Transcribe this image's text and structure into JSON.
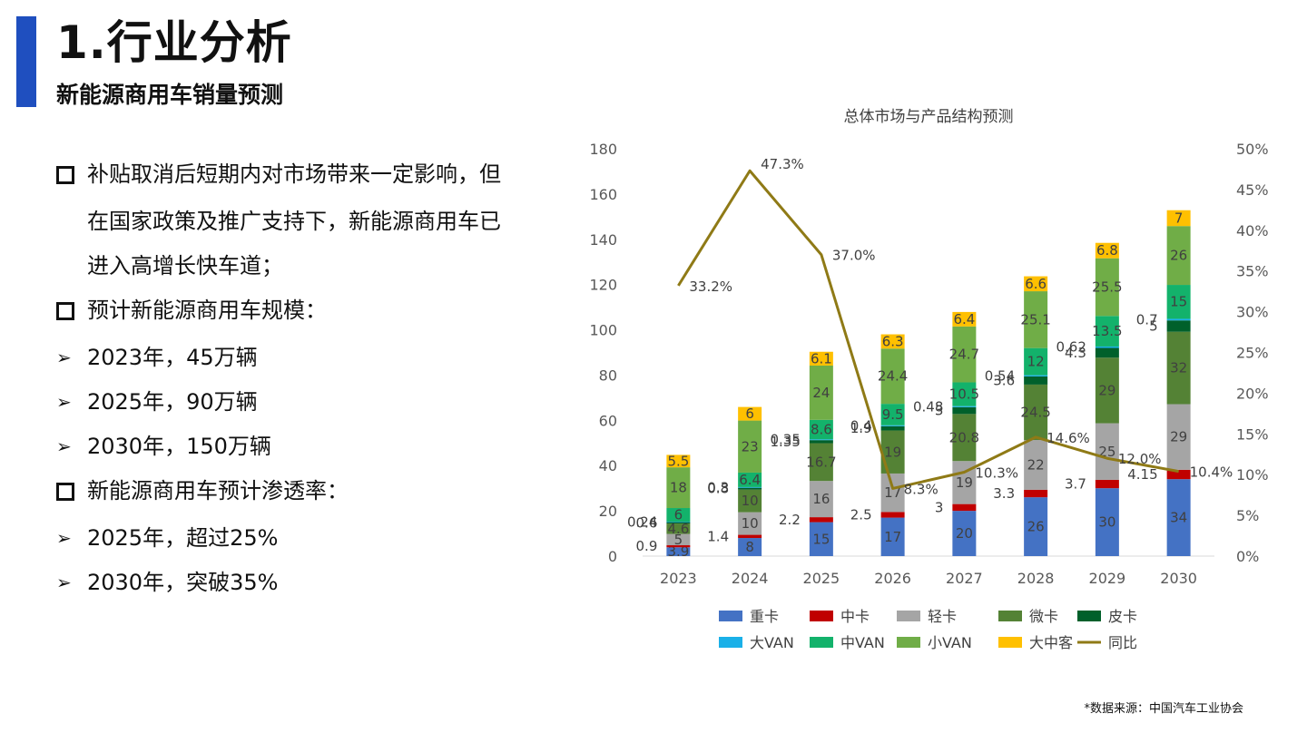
{
  "header": {
    "title": "1.行业分析",
    "subtitle": "新能源商用车销量预测"
  },
  "bullets": [
    {
      "marker": "square",
      "text": "补贴取消后短期内对市场带来一定影响，但"
    },
    {
      "marker": "none",
      "text": "在国家政策及推广支持下，新能源商用车已"
    },
    {
      "marker": "none",
      "text": "进入高增长快车道；"
    },
    {
      "marker": "square",
      "text": "预计新能源商用车规模："
    },
    {
      "marker": "arrow",
      "text": "2023年，45万辆"
    },
    {
      "marker": "arrow",
      "text": "2025年，90万辆"
    },
    {
      "marker": "arrow",
      "text": "2030年，150万辆"
    },
    {
      "marker": "square",
      "text": "新能源商用车预计渗透率："
    },
    {
      "marker": "arrow",
      "text": "2025年，超过25%"
    },
    {
      "marker": "arrow",
      "text": "2030年，突破35%"
    }
  ],
  "footnote": "*数据来源：中国汽车工业协会",
  "chart_data": {
    "type": "bar",
    "stacked": true,
    "title": "总体市场与产品结构预测",
    "categories": [
      "2023",
      "2024",
      "2025",
      "2026",
      "2027",
      "2028",
      "2029",
      "2030"
    ],
    "ylim": [
      0,
      180
    ],
    "yticks": [
      0,
      20,
      40,
      60,
      80,
      100,
      120,
      140,
      160,
      180
    ],
    "y2lim": [
      0,
      0.5
    ],
    "y2ticks": [
      "0%",
      "5%",
      "10%",
      "15%",
      "20%",
      "25%",
      "30%",
      "35%",
      "40%",
      "45%",
      "50%"
    ],
    "legend_position": "bottom",
    "series": [
      {
        "name": "重卡",
        "color": "#4472c4",
        "values": [
          3.9,
          8,
          15,
          17,
          20,
          26,
          30,
          34
        ],
        "labels": [
          "3.9",
          "8",
          "15",
          "17",
          "20",
          "26",
          "30",
          "34"
        ]
      },
      {
        "name": "中卡",
        "color": "#c00000",
        "values": [
          0.9,
          1.4,
          2.2,
          2.5,
          3,
          3.3,
          3.7,
          4.15
        ],
        "labels": [
          "0.9",
          "1.4",
          "2.2",
          "2.5",
          "3",
          "3.3",
          "3.7",
          "4.15"
        ]
      },
      {
        "name": "轻卡",
        "color": "#a5a5a5",
        "values": [
          5,
          10,
          16,
          17,
          19,
          22,
          25,
          29
        ],
        "labels": [
          "5",
          "10",
          "16",
          "17",
          "19",
          "22",
          "25",
          "29"
        ]
      },
      {
        "name": "微卡",
        "color": "#548235",
        "values": [
          4.6,
          10,
          16.7,
          19,
          20.8,
          24.5,
          29,
          32
        ],
        "labels": [
          "4.6",
          "10",
          "16.7",
          "19",
          "20.8",
          "24.5",
          "29",
          "32"
        ]
      },
      {
        "name": "皮卡",
        "color": "#00602b",
        "values": [
          0.6,
          0.8,
          1.35,
          1.9,
          3,
          3.6,
          4.3,
          5
        ],
        "labels": [
          "0.6",
          "0.8",
          "1.35",
          "1.9",
          "3",
          "3.6",
          "4.3",
          "5"
        ]
      },
      {
        "name": "大VAN",
        "color": "#1ab0e8",
        "values": [
          0.24,
          0.3,
          0.35,
          0.4,
          0.48,
          0.54,
          0.62,
          0.7
        ],
        "labels": [
          "0.24",
          "0.3",
          "0.35",
          "0.4",
          "0.48",
          "0.54",
          "0.62",
          "0.7"
        ]
      },
      {
        "name": "中VAN",
        "color": "#13b26b",
        "values": [
          6,
          6.4,
          8.6,
          9.5,
          10.5,
          12,
          13.5,
          15
        ],
        "labels": [
          "6",
          "6.4",
          "8.6",
          "9.5",
          "10.5",
          "12",
          "13.5",
          "15"
        ]
      },
      {
        "name": "小VAN",
        "color": "#70ad47",
        "values": [
          18,
          23,
          24,
          24.4,
          24.7,
          25.1,
          25.5,
          26
        ],
        "labels": [
          "18",
          "23",
          "24",
          "24.4",
          "24.7",
          "25.1",
          "25.5",
          "26"
        ]
      },
      {
        "name": "大中客",
        "color": "#ffc000",
        "values": [
          5.5,
          6,
          6.1,
          6.3,
          6.4,
          6.6,
          6.8,
          7
        ],
        "labels": [
          "5.5",
          "6",
          "6.1",
          "6.3",
          "6.4",
          "6.6",
          "6.8",
          "7"
        ]
      }
    ],
    "line": {
      "name": "同比",
      "color": "#8f7a16",
      "axis": "right",
      "values": [
        0.332,
        0.473,
        0.37,
        0.083,
        0.103,
        0.146,
        0.12,
        0.104
      ],
      "labels": [
        "33.2%",
        "47.3%",
        "37.0%",
        "8.3%",
        "10.3%",
        "14.6%",
        "12.0%",
        "10.4%"
      ]
    }
  }
}
